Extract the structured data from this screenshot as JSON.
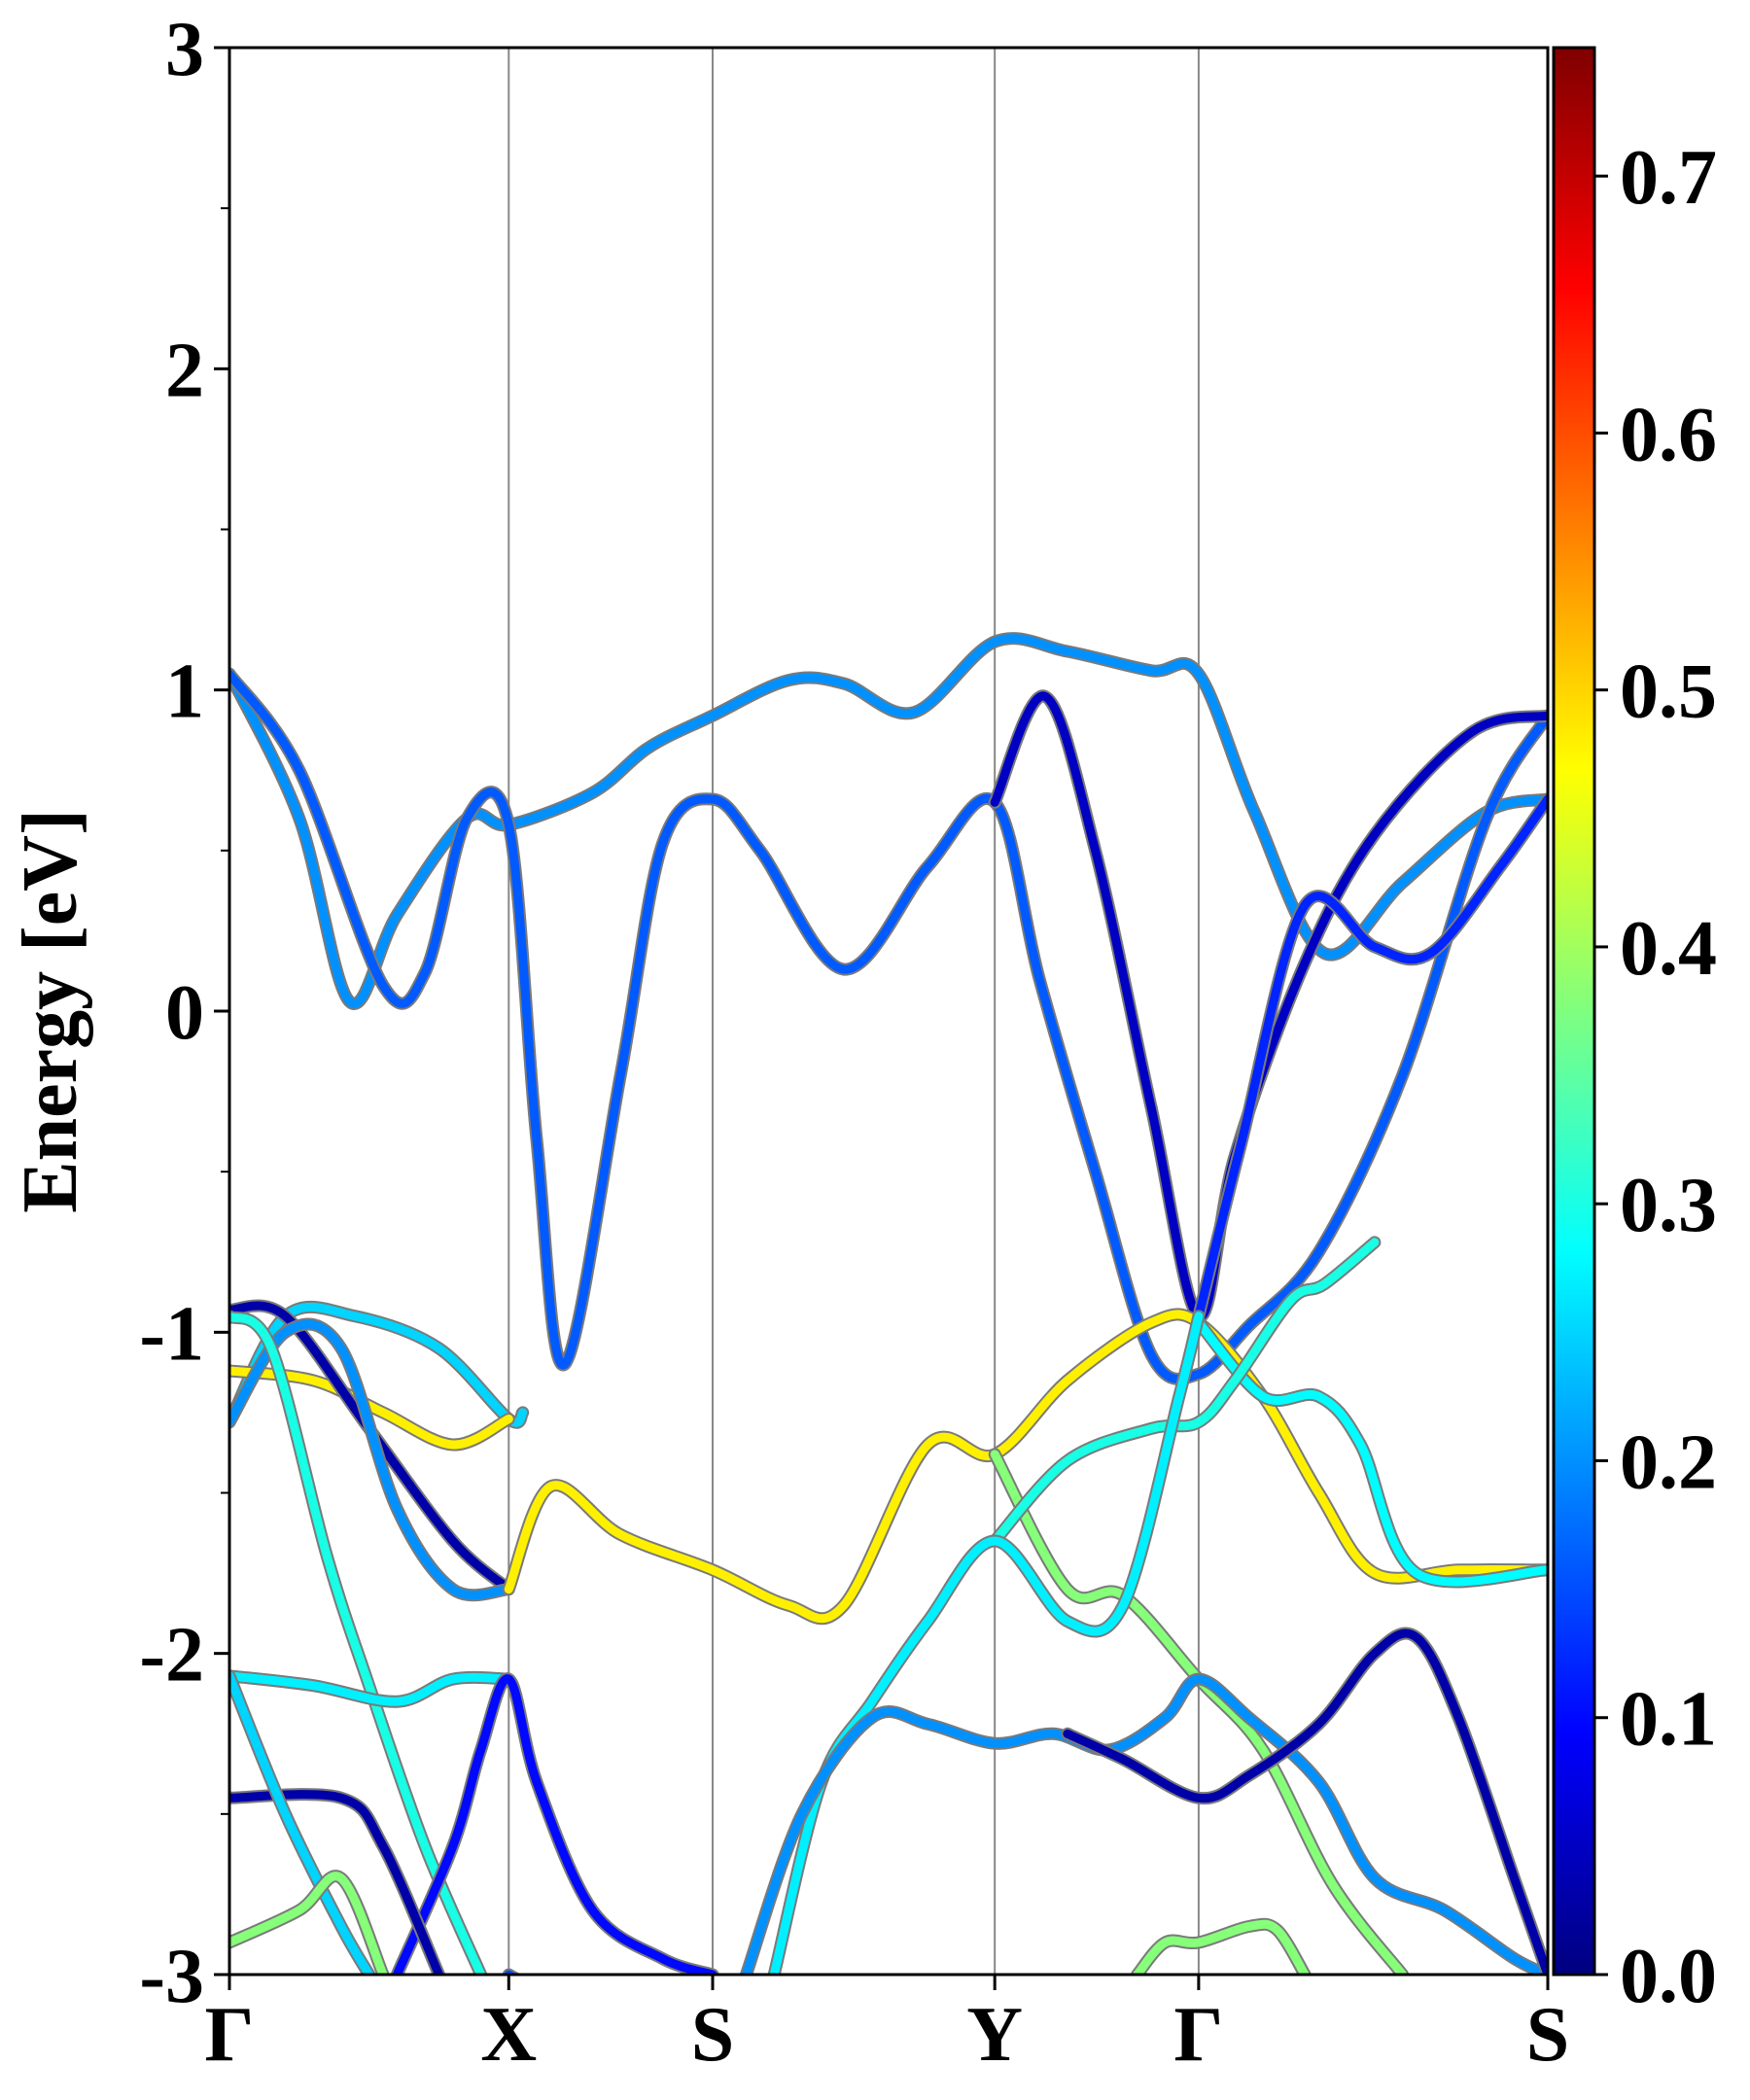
{
  "chart_data": {
    "type": "line",
    "title": "",
    "ylabel": "Energy [eV]",
    "xlabel": "",
    "ylim": [
      -3,
      3
    ],
    "yticks": [
      "3",
      "2",
      "1",
      "0",
      "-1",
      "-2",
      "-3"
    ],
    "ytick_values": [
      3,
      2,
      1,
      0,
      -1,
      -2,
      -3
    ],
    "kpath": [
      {
        "label": "Γ",
        "x": 0
      },
      {
        "label": "X",
        "x": 1
      },
      {
        "label": "S",
        "x": 1.73
      },
      {
        "label": "Y",
        "x": 2.74
      },
      {
        "label": "Γ",
        "x": 3.47
      },
      {
        "label": "S",
        "x": 4.72
      }
    ],
    "colorbar": {
      "range": [
        0,
        0.75
      ],
      "ticks": [
        "0.0",
        "0.1",
        "0.2",
        "0.3",
        "0.4",
        "0.5",
        "0.6",
        "0.7"
      ],
      "tick_values": [
        0,
        0.1,
        0.2,
        0.3,
        0.4,
        0.5,
        0.6,
        0.7
      ],
      "colormap": "jet"
    },
    "series": [
      {
        "w": 0.2,
        "points": [
          [
            0,
            1.05
          ],
          [
            0.25,
            0.6
          ],
          [
            0.43,
            0.03
          ],
          [
            0.6,
            0.3
          ],
          [
            0.85,
            0.6
          ],
          [
            1,
            0.58
          ],
          [
            1.3,
            0.68
          ],
          [
            1.5,
            0.82
          ],
          [
            1.73,
            0.92
          ],
          [
            2.0,
            1.03
          ],
          [
            2.2,
            1.02
          ],
          [
            2.45,
            0.93
          ],
          [
            2.74,
            1.15
          ],
          [
            3.0,
            1.12
          ],
          [
            3.3,
            1.06
          ],
          [
            3.47,
            1.05
          ],
          [
            3.67,
            0.62
          ],
          [
            3.92,
            0.18
          ],
          [
            4.2,
            0.4
          ],
          [
            4.5,
            0.62
          ],
          [
            4.72,
            0.66
          ]
        ]
      },
      {
        "w": 0.16,
        "points": [
          [
            0,
            1.05
          ],
          [
            0.25,
            0.75
          ],
          [
            0.55,
            0.08
          ],
          [
            0.7,
            0.12
          ],
          [
            0.85,
            0.6
          ],
          [
            1,
            0.58
          ],
          [
            1.1,
            -0.4
          ],
          [
            1.2,
            -1.1
          ],
          [
            1.4,
            -0.2
          ],
          [
            1.55,
            0.52
          ],
          [
            1.73,
            0.66
          ],
          [
            1.9,
            0.5
          ],
          [
            2.2,
            0.13
          ],
          [
            2.5,
            0.45
          ],
          [
            2.74,
            0.65
          ],
          [
            2.9,
            0.1
          ],
          [
            3.1,
            -0.5
          ],
          [
            3.3,
            -1.07
          ],
          [
            3.47,
            -1.13
          ],
          [
            3.65,
            -0.98
          ],
          [
            3.9,
            -0.75
          ],
          [
            4.2,
            -0.2
          ],
          [
            4.5,
            0.6
          ],
          [
            4.72,
            0.92
          ]
        ]
      },
      {
        "w": 0.05,
        "points": [
          [
            2.74,
            0.65
          ],
          [
            2.92,
            0.98
          ],
          [
            3.1,
            0.5
          ],
          [
            3.3,
            -0.3
          ],
          [
            3.47,
            -0.95
          ],
          [
            3.6,
            -0.45
          ],
          [
            3.85,
            0.15
          ],
          [
            4.1,
            0.55
          ],
          [
            4.45,
            0.87
          ],
          [
            4.72,
            0.92
          ]
        ]
      },
      {
        "w": 0.12,
        "points": [
          [
            3.47,
            -0.95
          ],
          [
            3.62,
            -0.42
          ],
          [
            3.85,
            0.33
          ],
          [
            4.1,
            0.2
          ],
          [
            4.3,
            0.18
          ],
          [
            4.55,
            0.45
          ],
          [
            4.72,
            0.66
          ]
        ]
      },
      {
        "w": 0.25,
        "points": [
          [
            0,
            -1.28
          ],
          [
            0.2,
            -0.95
          ],
          [
            0.45,
            -0.95
          ],
          [
            0.75,
            -1.05
          ],
          [
            1,
            -1.27
          ],
          [
            1.05,
            -1.25
          ]
        ]
      },
      {
        "w": 0.48,
        "points": [
          [
            0,
            -1.12
          ],
          [
            0.3,
            -1.15
          ],
          [
            0.55,
            -1.25
          ],
          [
            0.8,
            -1.35
          ],
          [
            1,
            -1.27
          ]
        ]
      },
      {
        "w": 0.03,
        "points": [
          [
            0,
            -0.93
          ],
          [
            0.2,
            -0.95
          ],
          [
            0.5,
            -1.3
          ],
          [
            0.8,
            -1.65
          ],
          [
            1,
            -1.8
          ]
        ]
      },
      {
        "w": 0.2,
        "points": [
          [
            0,
            -1.28
          ],
          [
            0.2,
            -1.0
          ],
          [
            0.4,
            -1.05
          ],
          [
            0.6,
            -1.55
          ],
          [
            0.8,
            -1.8
          ],
          [
            1,
            -1.8
          ]
        ]
      },
      {
        "w": 0.48,
        "points": [
          [
            1,
            -1.8
          ],
          [
            1.15,
            -1.48
          ],
          [
            1.4,
            -1.63
          ],
          [
            1.73,
            -1.74
          ],
          [
            2.0,
            -1.85
          ],
          [
            2.2,
            -1.85
          ],
          [
            2.5,
            -1.35
          ],
          [
            2.74,
            -1.38
          ],
          [
            3.0,
            -1.15
          ],
          [
            3.3,
            -0.97
          ],
          [
            3.47,
            -0.97
          ],
          [
            3.7,
            -1.2
          ],
          [
            3.9,
            -1.5
          ],
          [
            4.1,
            -1.75
          ],
          [
            4.4,
            -1.74
          ],
          [
            4.72,
            -1.74
          ]
        ]
      },
      {
        "w": 0.3,
        "points": [
          [
            0,
            -0.95
          ],
          [
            0.15,
            -1.05
          ],
          [
            0.35,
            -1.7
          ],
          [
            0.5,
            -2.1
          ],
          [
            0.7,
            -2.6
          ],
          [
            0.9,
            -3.0
          ]
        ]
      },
      {
        "w": 0.38,
        "points": [
          [
            2.74,
            -1.38
          ],
          [
            3.0,
            -1.8
          ],
          [
            3.2,
            -1.82
          ],
          [
            3.47,
            -2.08
          ],
          [
            3.7,
            -2.3
          ],
          [
            3.95,
            -2.72
          ],
          [
            4.2,
            -3.0
          ]
        ]
      },
      {
        "w": 0.28,
        "points": [
          [
            3.47,
            -0.97
          ],
          [
            3.7,
            -1.2
          ],
          [
            3.9,
            -1.2
          ],
          [
            4.05,
            -1.35
          ],
          [
            4.25,
            -1.75
          ],
          [
            4.72,
            -1.74
          ]
        ]
      },
      {
        "w": 0.3,
        "points": [
          [
            2.74,
            -1.65
          ],
          [
            3.0,
            -1.4
          ],
          [
            3.3,
            -1.3
          ],
          [
            3.47,
            -1.28
          ],
          [
            3.6,
            -1.15
          ],
          [
            3.8,
            -0.9
          ],
          [
            3.92,
            -0.85
          ],
          [
            4.1,
            -0.72
          ]
        ]
      },
      {
        "w": 0.27,
        "points": [
          [
            1.95,
            -3.0
          ],
          [
            2.12,
            -2.4
          ],
          [
            2.3,
            -2.15
          ],
          [
            2.5,
            -1.9
          ],
          [
            2.74,
            -1.65
          ],
          [
            3.0,
            -1.9
          ],
          [
            3.2,
            -1.85
          ],
          [
            3.4,
            -1.2
          ],
          [
            3.47,
            -0.95
          ]
        ]
      },
      {
        "w": 0.27,
        "points": [
          [
            0,
            -2.07
          ],
          [
            0.3,
            -2.1
          ],
          [
            0.6,
            -2.15
          ],
          [
            0.8,
            -2.08
          ],
          [
            1,
            -2.08
          ]
        ]
      },
      {
        "w": 0.1,
        "points": [
          [
            0.6,
            -3.0
          ],
          [
            0.8,
            -2.6
          ],
          [
            0.9,
            -2.3
          ],
          [
            1,
            -2.08
          ],
          [
            1.1,
            -2.4
          ],
          [
            1.3,
            -2.8
          ],
          [
            1.55,
            -2.95
          ],
          [
            1.73,
            -3.0
          ]
        ]
      },
      {
        "w": 0.03,
        "points": [
          [
            0,
            -2.45
          ],
          [
            0.4,
            -2.45
          ],
          [
            0.55,
            -2.6
          ],
          [
            0.75,
            -3.0
          ]
        ]
      },
      {
        "w": 0.25,
        "points": [
          [
            0,
            -2.07
          ],
          [
            0.2,
            -2.5
          ],
          [
            0.4,
            -2.85
          ],
          [
            0.5,
            -3.0
          ]
        ]
      },
      {
        "w": 0.38,
        "points": [
          [
            0,
            -2.9
          ],
          [
            0.25,
            -2.8
          ],
          [
            0.4,
            -2.7
          ],
          [
            0.55,
            -3.0
          ]
        ]
      },
      {
        "w": 0.15,
        "points": [
          [
            1,
            -3.0
          ],
          [
            1.1,
            -3.05
          ]
        ]
      },
      {
        "w": 0.2,
        "points": [
          [
            1.85,
            -3.0
          ],
          [
            2.05,
            -2.5
          ],
          [
            2.3,
            -2.2
          ],
          [
            2.5,
            -2.22
          ],
          [
            2.74,
            -2.28
          ],
          [
            2.95,
            -2.25
          ],
          [
            3.15,
            -2.3
          ],
          [
            3.35,
            -2.2
          ],
          [
            3.47,
            -2.08
          ],
          [
            3.65,
            -2.2
          ],
          [
            3.9,
            -2.4
          ],
          [
            4.1,
            -2.7
          ],
          [
            4.35,
            -2.8
          ],
          [
            4.6,
            -2.95
          ],
          [
            4.72,
            -3.0
          ]
        ]
      },
      {
        "w": 0.03,
        "points": [
          [
            3.0,
            -2.25
          ],
          [
            3.2,
            -2.33
          ],
          [
            3.47,
            -2.45
          ],
          [
            3.65,
            -2.38
          ],
          [
            3.9,
            -2.22
          ],
          [
            4.1,
            -2.0
          ],
          [
            4.25,
            -1.95
          ],
          [
            4.4,
            -2.2
          ],
          [
            4.6,
            -2.7
          ],
          [
            4.72,
            -3.0
          ]
        ]
      },
      {
        "w": 0.38,
        "points": [
          [
            3.25,
            -3.0
          ],
          [
            3.35,
            -2.9
          ],
          [
            3.47,
            -2.9
          ],
          [
            3.65,
            -2.85
          ],
          [
            3.75,
            -2.86
          ],
          [
            3.85,
            -3.0
          ]
        ]
      }
    ]
  }
}
